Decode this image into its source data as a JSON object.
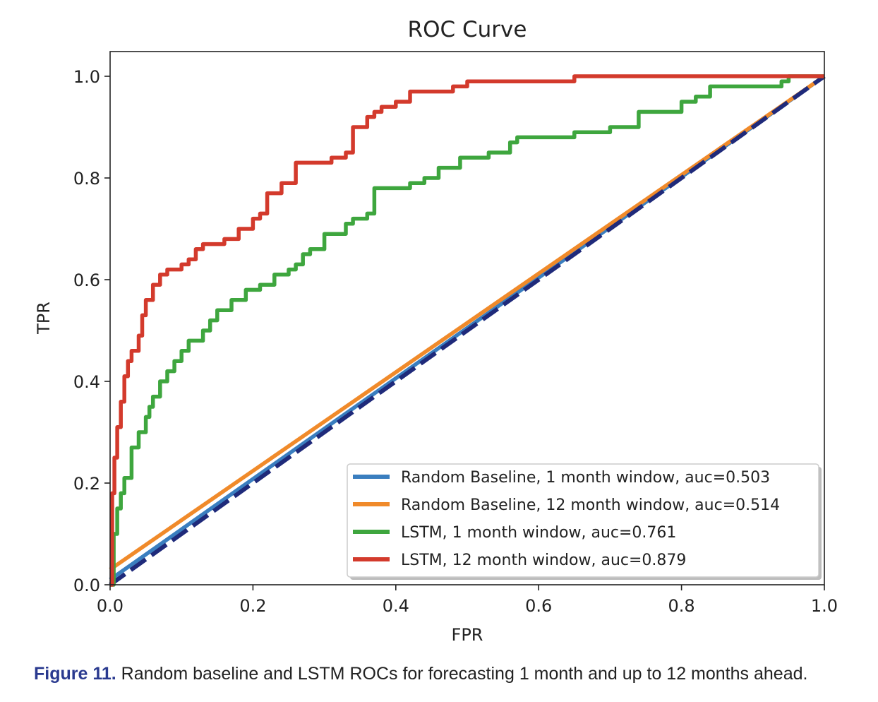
{
  "chart_data": {
    "type": "line",
    "title": "ROC Curve",
    "xlabel": "FPR",
    "ylabel": "TPR",
    "xlim": [
      0.0,
      1.0
    ],
    "ylim": [
      0.0,
      1.0
    ],
    "xticks": [
      "0.0",
      "0.2",
      "0.4",
      "0.6",
      "0.8",
      "1.0"
    ],
    "yticks": [
      "0.0",
      "0.2",
      "0.4",
      "0.6",
      "0.8",
      "1.0"
    ],
    "grid": false,
    "legend_position": "lower-right",
    "series": [
      {
        "name": "Random Baseline, 1 month window, auc=0.503",
        "color": "#3a7ebf",
        "x": [
          0.0,
          1.0
        ],
        "y": [
          0.01,
          1.0
        ]
      },
      {
        "name": "Random Baseline, 12 month window, auc=0.514",
        "color": "#f08a2a",
        "x": [
          0.0,
          1.0
        ],
        "y": [
          0.03,
          1.0
        ]
      },
      {
        "name": "LSTM, 1 month window, auc=0.761",
        "color": "#3ea63e",
        "x": [
          0.0,
          0.005,
          0.01,
          0.015,
          0.02,
          0.03,
          0.04,
          0.05,
          0.055,
          0.06,
          0.07,
          0.08,
          0.09,
          0.1,
          0.11,
          0.12,
          0.13,
          0.14,
          0.15,
          0.17,
          0.19,
          0.21,
          0.23,
          0.25,
          0.26,
          0.27,
          0.28,
          0.3,
          0.33,
          0.34,
          0.36,
          0.37,
          0.42,
          0.44,
          0.46,
          0.49,
          0.53,
          0.56,
          0.57,
          0.65,
          0.7,
          0.74,
          0.8,
          0.82,
          0.84,
          0.92,
          0.94,
          0.95,
          1.0
        ],
        "y": [
          0.0,
          0.1,
          0.15,
          0.18,
          0.21,
          0.27,
          0.3,
          0.33,
          0.35,
          0.37,
          0.4,
          0.42,
          0.44,
          0.46,
          0.48,
          0.48,
          0.5,
          0.52,
          0.54,
          0.56,
          0.58,
          0.59,
          0.61,
          0.62,
          0.63,
          0.65,
          0.66,
          0.69,
          0.71,
          0.72,
          0.73,
          0.78,
          0.79,
          0.8,
          0.82,
          0.84,
          0.85,
          0.87,
          0.88,
          0.89,
          0.9,
          0.93,
          0.95,
          0.96,
          0.98,
          0.98,
          0.99,
          1.0,
          1.0
        ]
      },
      {
        "name": "LSTM, 12 month window, auc=0.879",
        "color": "#d33a2c",
        "x": [
          0.0,
          0.003,
          0.006,
          0.01,
          0.015,
          0.02,
          0.025,
          0.03,
          0.04,
          0.045,
          0.05,
          0.06,
          0.07,
          0.08,
          0.09,
          0.1,
          0.11,
          0.12,
          0.13,
          0.14,
          0.16,
          0.18,
          0.2,
          0.21,
          0.22,
          0.24,
          0.26,
          0.28,
          0.31,
          0.33,
          0.34,
          0.36,
          0.37,
          0.38,
          0.4,
          0.42,
          0.45,
          0.48,
          0.5,
          0.55,
          0.65,
          0.8,
          1.0
        ],
        "y": [
          0.0,
          0.18,
          0.25,
          0.31,
          0.36,
          0.41,
          0.44,
          0.46,
          0.49,
          0.53,
          0.56,
          0.59,
          0.61,
          0.62,
          0.62,
          0.63,
          0.64,
          0.66,
          0.67,
          0.67,
          0.68,
          0.7,
          0.72,
          0.73,
          0.77,
          0.79,
          0.83,
          0.83,
          0.84,
          0.85,
          0.9,
          0.92,
          0.93,
          0.94,
          0.95,
          0.97,
          0.97,
          0.98,
          0.99,
          0.99,
          1.0,
          1.0,
          1.0
        ]
      }
    ],
    "reference_line": {
      "color": "#1f2a7a",
      "dash": true,
      "x": [
        0.0,
        1.0
      ],
      "y": [
        0.0,
        1.0
      ]
    }
  },
  "caption": {
    "label": "Figure 11.",
    "text": " Random baseline and LSTM ROCs for forecasting 1 month and up to 12 months ahead."
  }
}
